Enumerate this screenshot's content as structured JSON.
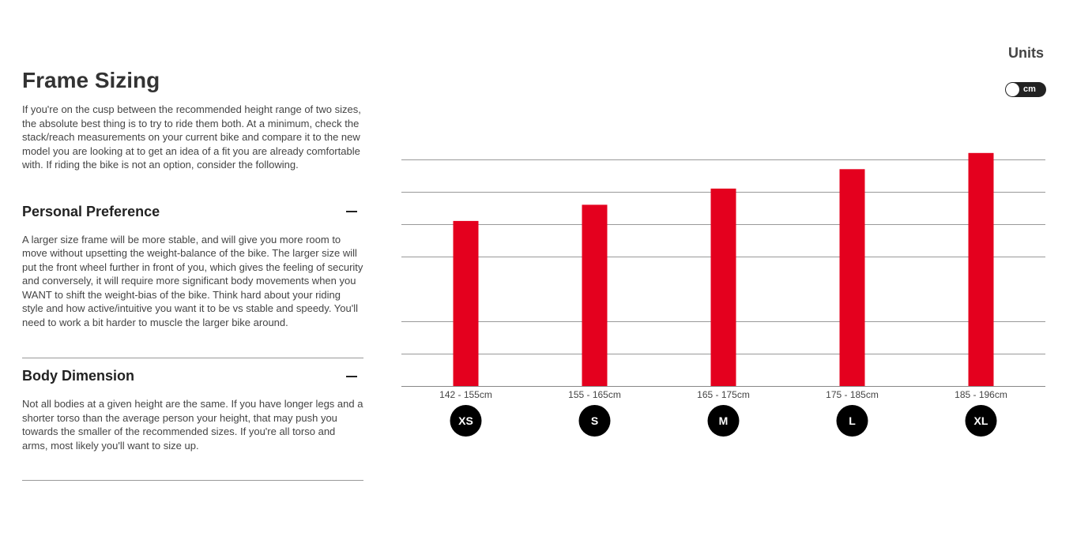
{
  "title": "Frame Sizing",
  "intro": "If you're on the cusp between the recommended height range of two sizes, the absolute best thing is to try to ride them both. At a minimum, check the stack/reach measurements on your current bike and compare it to the new model you are looking at to get an idea of a fit you are already comfortable with. If riding the bike is not an option, consider the following.",
  "sections": [
    {
      "title": "Personal Preference",
      "icon": "minus-icon",
      "body": "A larger size frame will be more stable, and will give you more room to move without upsetting the weight-balance of the bike. The larger size will put the front wheel further in front of you, which gives the feeling of security and conversely, it will require more significant body movements when you WANT to shift the weight-bias of the bike. Think hard about your riding style and how active/intuitive you want it to be vs stable and speedy. You'll need to work a bit harder to muscle the larger bike around."
    },
    {
      "title": "Body Dimension",
      "icon": "minus-icon",
      "body": "Not all bodies at a given height are the same. If you have longer legs and a shorter torso than the average person your height, that may push you towards the smaller of the recommended sizes. If you're all torso and arms, most likely you'll want to size up."
    }
  ],
  "units": {
    "label": "Units",
    "toggle_value": "cm"
  },
  "chart_data": {
    "type": "bar",
    "categories": [
      "142 - 155cm",
      "155 - 165cm",
      "165 - 175cm",
      "175 - 185cm",
      "185 - 196cm"
    ],
    "sizes": [
      "XS",
      "S",
      "M",
      "L",
      "XL"
    ],
    "values": [
      5.1,
      5.6,
      6.1,
      6.7,
      7.2
    ],
    "gridlines": [
      1,
      2,
      4,
      5,
      6,
      7
    ],
    "ylim": [
      0,
      7.2
    ],
    "grid": true,
    "bar_color": "#e4001e",
    "badge_color": "#000000"
  }
}
